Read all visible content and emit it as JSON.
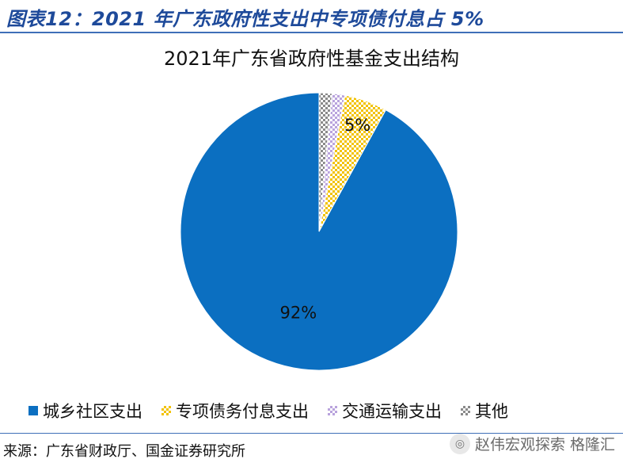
{
  "figure_title": "图表12：2021 年广东政府性支出中专项债付息占 5%",
  "chart_data": {
    "type": "pie",
    "title": "2021年广东省政府性基金支出结构",
    "series": [
      {
        "name": "城乡社区支出",
        "value": 92,
        "color": "#0b6fc1",
        "pattern": "solid"
      },
      {
        "name": "专项债务付息支出",
        "value": 5,
        "color": "#f2c200",
        "pattern": "checker"
      },
      {
        "name": "交通运输支出",
        "value": 1.5,
        "color": "#b9a3dd",
        "pattern": "checker"
      },
      {
        "name": "其他",
        "value": 1.5,
        "color": "#8a8a8a",
        "pattern": "checker"
      }
    ],
    "data_labels": [
      {
        "series": 0,
        "text": "92%"
      },
      {
        "series": 1,
        "text": "5%"
      }
    ],
    "start_angle": "12 o'clock",
    "direction": "counterclockwise",
    "legend_position": "bottom"
  },
  "source": "来源：广东省财政厅、国金证券研究所",
  "watermark": {
    "text": "赵伟宏观探索",
    "logo_icon": "wechat-icon",
    "sub": "格隆汇"
  }
}
